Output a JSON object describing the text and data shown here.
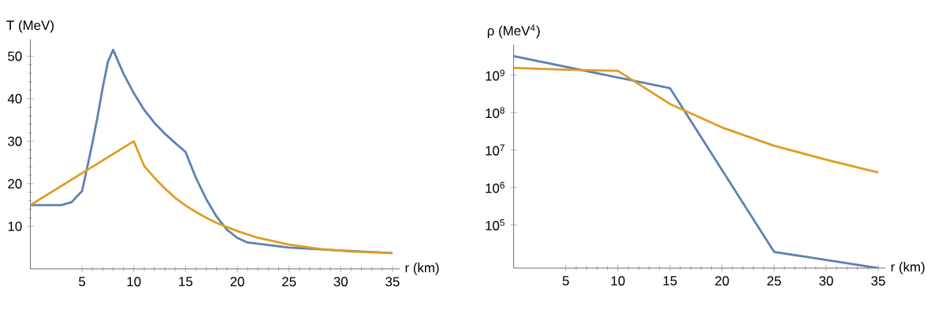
{
  "chart_data": [
    {
      "type": "line",
      "xlabel": "r (km)",
      "ylabel": "T (MeV)",
      "xlim": [
        0,
        35.7
      ],
      "ylim": [
        0,
        54
      ],
      "xticks": [
        5,
        10,
        15,
        20,
        25,
        30,
        35
      ],
      "yticks": [
        10,
        20,
        30,
        40,
        50
      ],
      "grid": false,
      "series": [
        {
          "color": "#5e81b5",
          "x": [
            0,
            3,
            4,
            5,
            5.5,
            6,
            6.5,
            7,
            7.5,
            8,
            9,
            10,
            11,
            12,
            13,
            14,
            15,
            16,
            17,
            18,
            19,
            20,
            21,
            25,
            30,
            35
          ],
          "values": [
            15,
            15,
            15.7,
            18.3,
            23.9,
            29.6,
            35.8,
            42.7,
            48.7,
            51.5,
            45.9,
            41.3,
            37.4,
            34.3,
            31.8,
            29.6,
            27.5,
            21.4,
            16.4,
            12.3,
            9.2,
            7.3,
            6.2,
            5.0,
            4.3,
            3.7
          ]
        },
        {
          "color": "#e19c24",
          "x": [
            0,
            10,
            11,
            12,
            13,
            14,
            15,
            16,
            17,
            18,
            20,
            22,
            25,
            28,
            31,
            35
          ],
          "values": [
            15,
            30,
            24.2,
            21.4,
            18.9,
            16.7,
            14.9,
            13.4,
            12.0,
            10.8,
            8.9,
            7.3,
            5.7,
            4.7,
            4.1,
            3.7
          ]
        }
      ]
    },
    {
      "type": "line",
      "xlabel": "r (km)",
      "ylabel": "ρ (MeV$^{4}$)",
      "log": "y",
      "xlim": [
        0,
        35.7
      ],
      "ylim": [
        7000,
        6500000000
      ],
      "xticks": [
        5,
        10,
        15,
        20,
        25,
        30,
        35
      ],
      "yticks": [
        {
          "value": 100000,
          "label": "10$^{5}$"
        },
        {
          "value": 1000000,
          "label": "10$^{6}$"
        },
        {
          "value": 10000000,
          "label": "10$^{7}$"
        },
        {
          "value": 100000000,
          "label": "10$^{8}$"
        },
        {
          "value": 1000000000,
          "label": "10$^{9}$"
        }
      ],
      "grid": false,
      "series": [
        {
          "color": "#5e81b5",
          "x": [
            0,
            15,
            25,
            35
          ],
          "values": [
            3200000000,
            450000000,
            19000,
            7000
          ]
        },
        {
          "color": "#e19c24",
          "x": [
            0,
            5,
            10,
            15,
            20,
            25,
            30,
            35
          ],
          "values": [
            1550000000,
            1400000000,
            1300000000,
            170000000,
            40000000,
            13000000,
            5500000,
            2500000
          ]
        }
      ]
    }
  ]
}
